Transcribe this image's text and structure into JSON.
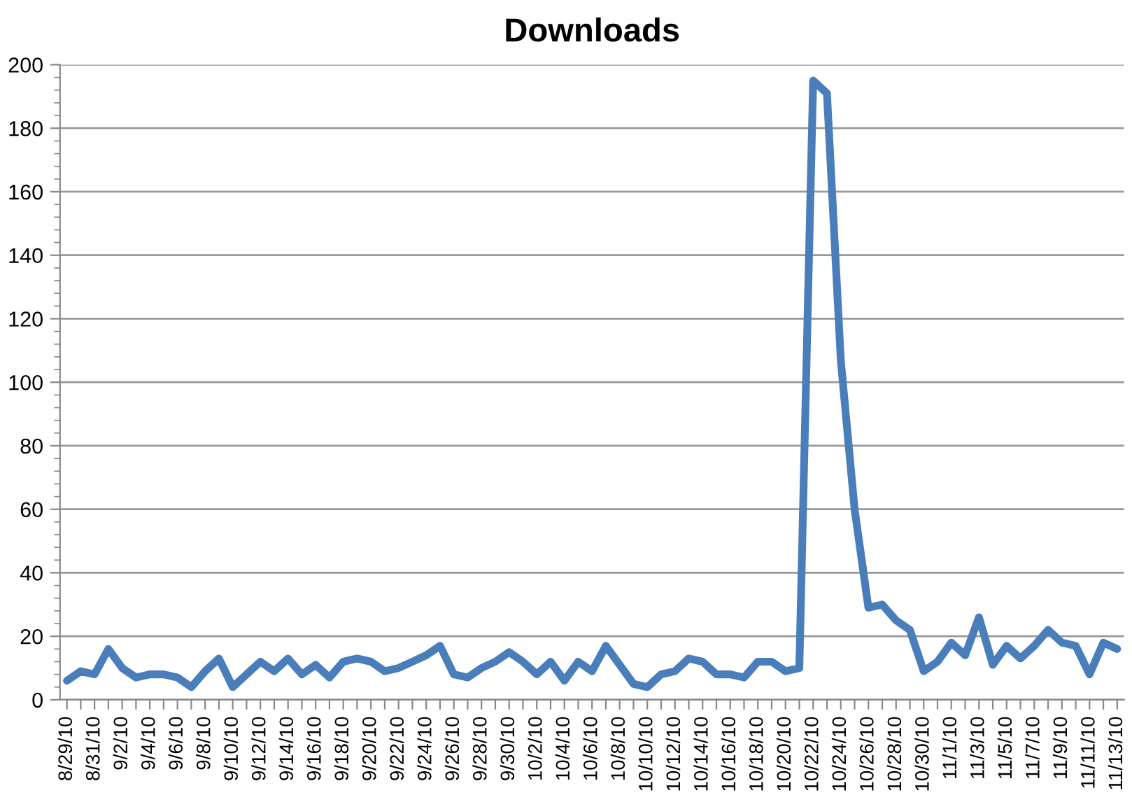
{
  "chart_data": {
    "type": "line",
    "title": "Downloads",
    "categories": [
      "8/29/10",
      null,
      "8/31/10",
      null,
      "9/2/10",
      null,
      "9/4/10",
      null,
      "9/6/10",
      null,
      "9/8/10",
      null,
      "9/10/10",
      null,
      "9/12/10",
      null,
      "9/14/10",
      null,
      "9/16/10",
      null,
      "9/18/10",
      null,
      "9/20/10",
      null,
      "9/22/10",
      null,
      "9/24/10",
      null,
      "9/26/10",
      null,
      "9/28/10",
      null,
      "9/30/10",
      null,
      "10/2/10",
      null,
      "10/4/10",
      null,
      "10/6/10",
      null,
      "10/8/10",
      null,
      "10/10/10",
      null,
      "10/12/10",
      null,
      "10/14/10",
      null,
      "10/16/10",
      null,
      "10/18/10",
      null,
      "10/20/10",
      null,
      "10/22/10",
      null,
      "10/24/10",
      null,
      "10/26/10",
      null,
      "10/28/10",
      null,
      "10/30/10",
      null,
      "11/1/10",
      null,
      "11/3/10",
      null,
      "11/5/10",
      null,
      "11/7/10",
      null,
      "11/9/10",
      null,
      "11/11/10",
      null,
      "11/13/10"
    ],
    "series": [
      {
        "color": "#4a7ebb",
        "values": [
          6,
          9,
          8,
          16,
          10,
          7,
          8,
          8,
          7,
          4,
          9,
          13,
          4,
          8,
          12,
          9,
          13,
          8,
          11,
          7,
          12,
          13,
          12,
          9,
          10,
          12,
          14,
          17,
          8,
          7,
          10,
          12,
          15,
          12,
          8,
          12,
          6,
          12,
          9,
          17,
          11,
          5,
          4,
          8,
          9,
          13,
          12,
          8,
          8,
          7,
          12,
          12,
          9,
          10,
          195,
          191,
          107,
          60,
          29,
          30,
          25,
          22,
          9,
          12,
          18,
          14,
          26,
          11,
          17,
          13,
          17,
          22,
          18,
          17,
          8,
          18,
          16
        ]
      }
    ],
    "ylim": [
      0,
      200
    ],
    "yticks": [
      0,
      20,
      40,
      60,
      80,
      100,
      120,
      140,
      160,
      180,
      200
    ],
    "grid": "y",
    "marker": "none",
    "line_style": "solid"
  }
}
